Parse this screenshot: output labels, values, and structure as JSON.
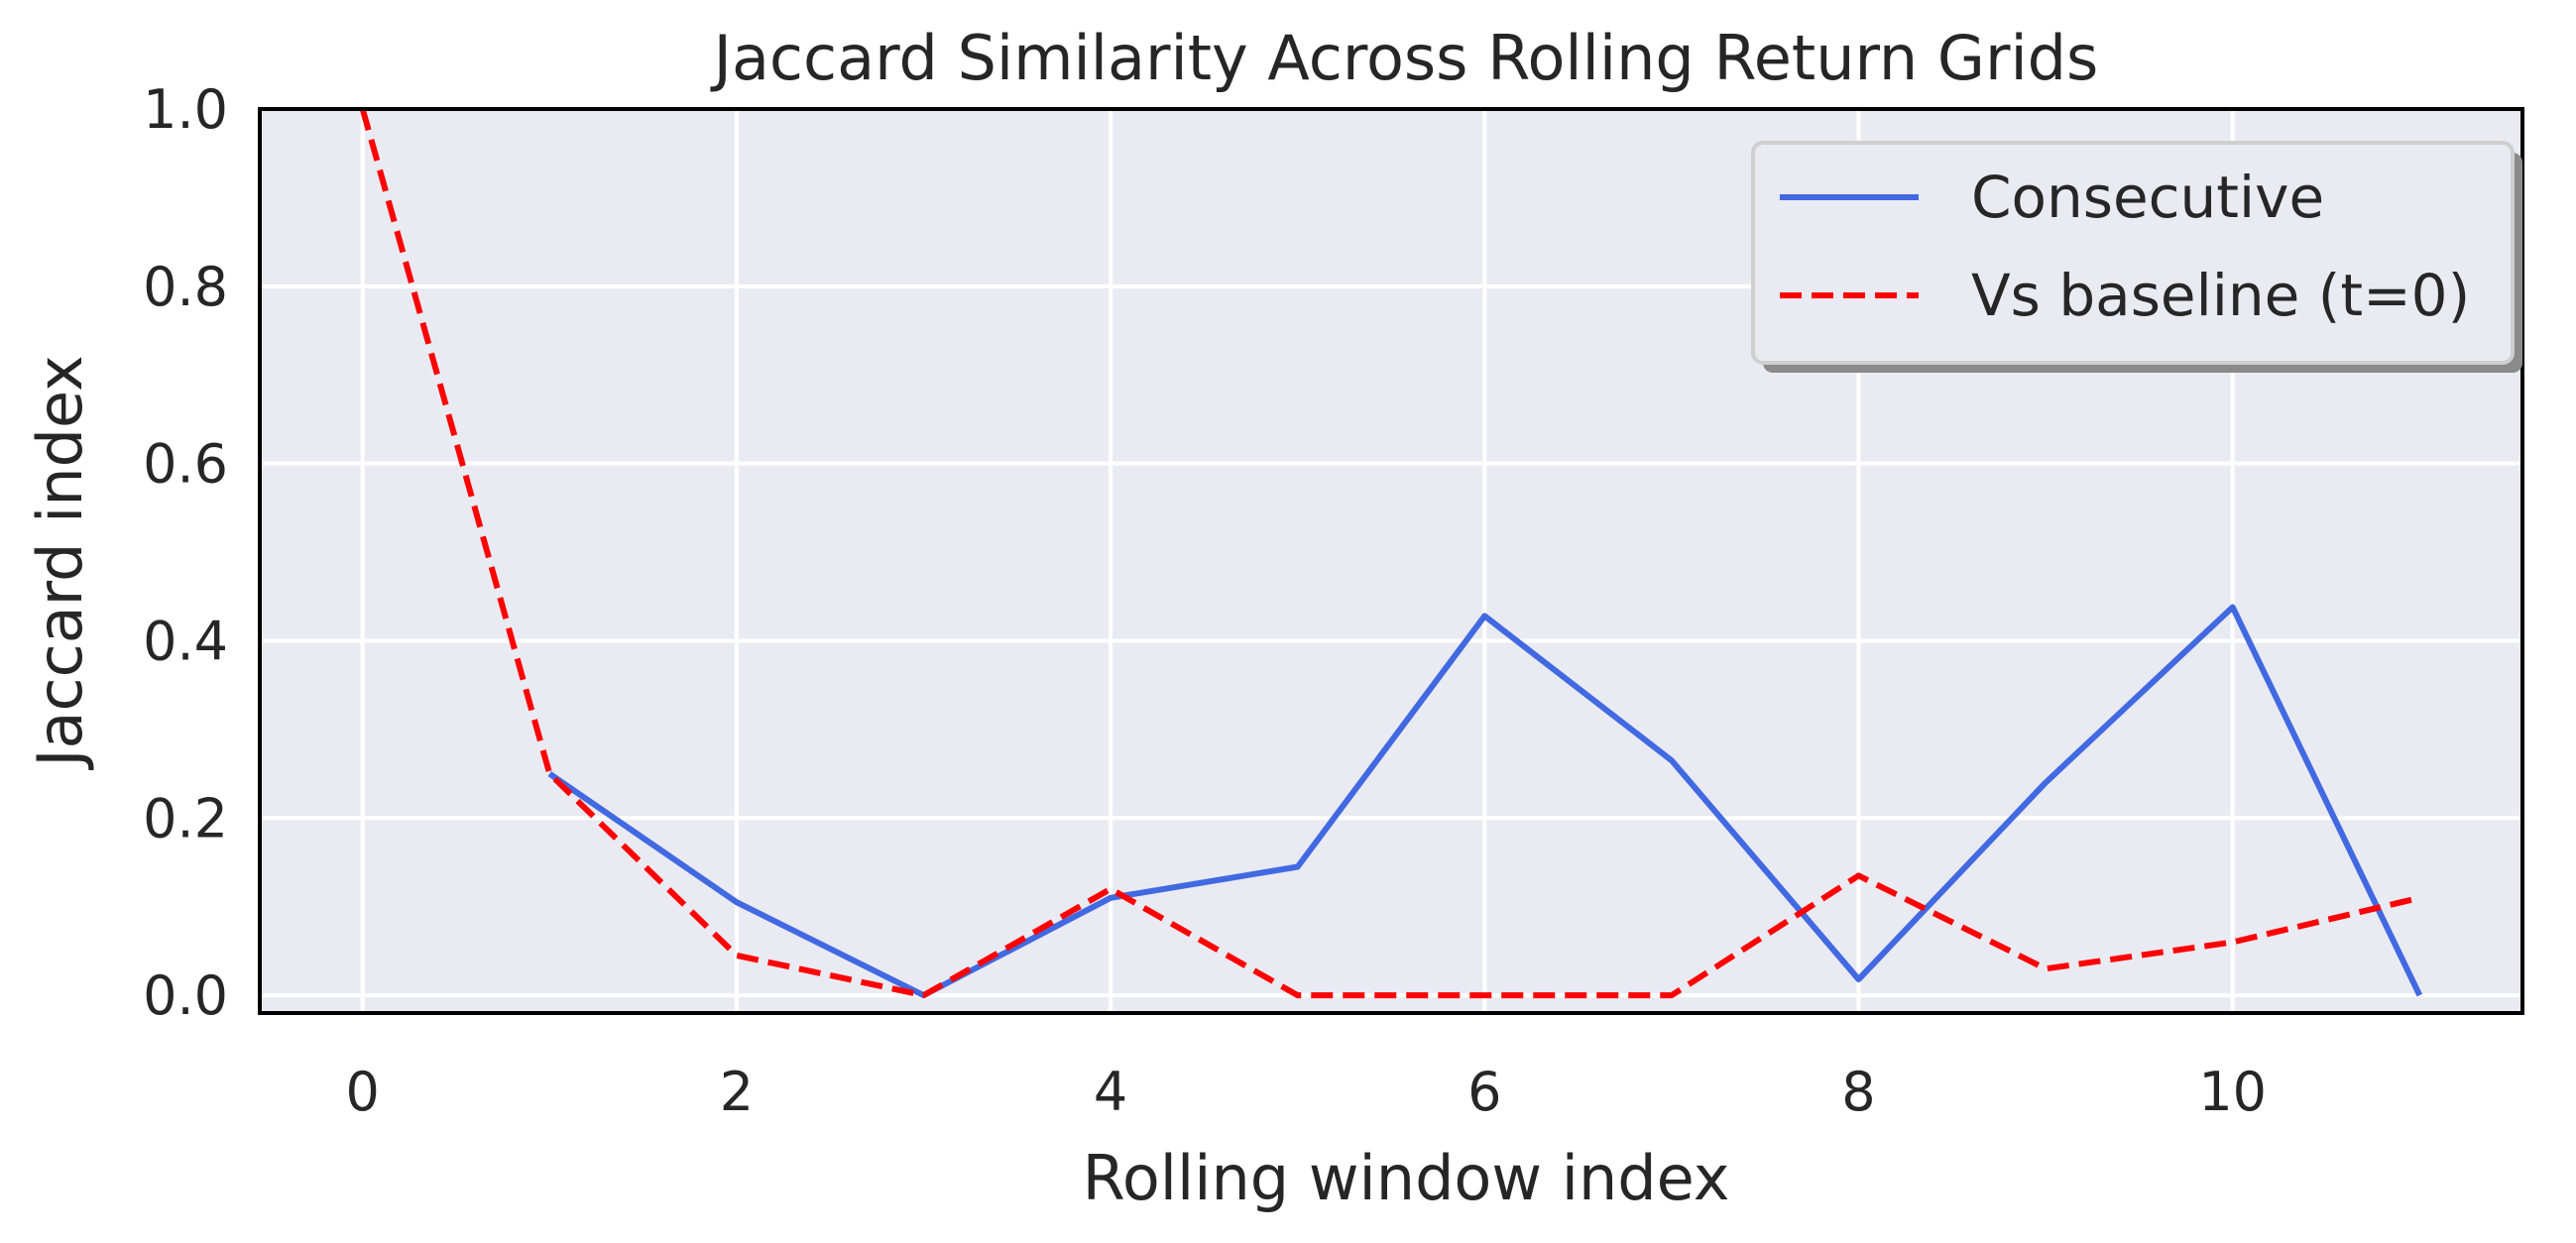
{
  "chart_data": {
    "type": "line",
    "title": "Jaccard Similarity Across Rolling Return Grids",
    "xlabel": "Rolling window index",
    "ylabel": "Jaccard index",
    "xlim": [
      -0.55,
      11.55
    ],
    "ylim": [
      -0.02,
      1.0
    ],
    "xticks": [
      0,
      2,
      4,
      6,
      8,
      10
    ],
    "yticks": [
      0.0,
      0.2,
      0.4,
      0.6,
      0.8,
      1.0
    ],
    "xtick_labels": [
      "0",
      "2",
      "4",
      "6",
      "8",
      "10"
    ],
    "ytick_labels": [
      "0.0",
      "0.2",
      "0.4",
      "0.6",
      "0.8",
      "1.0"
    ],
    "grid": true,
    "legend_position": "top-right",
    "series": [
      {
        "name": "Consecutive",
        "color": "#4169e1",
        "style": "solid",
        "x": [
          1,
          2,
          3,
          4,
          5,
          6,
          7,
          8,
          9,
          10,
          11
        ],
        "y": [
          0.25,
          0.105,
          0.0,
          0.11,
          0.145,
          0.428,
          0.265,
          0.018,
          0.24,
          0.438,
          0.0
        ]
      },
      {
        "name": "Vs baseline (t=0)",
        "color": "#ff0000",
        "style": "dashed",
        "x": [
          0,
          1,
          2,
          3,
          4,
          5,
          6,
          7,
          8,
          9,
          10,
          11
        ],
        "y": [
          1.0,
          0.25,
          0.045,
          0.0,
          0.12,
          0.0,
          0.0,
          0.0,
          0.135,
          0.03,
          0.06,
          0.11
        ]
      }
    ]
  }
}
